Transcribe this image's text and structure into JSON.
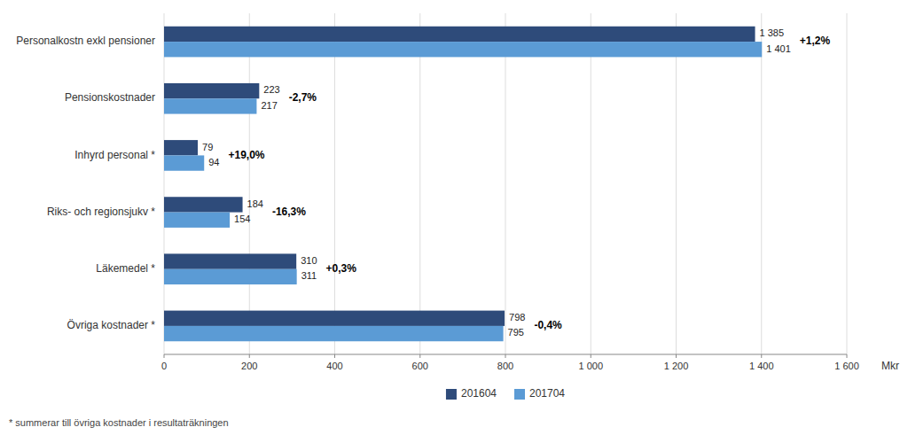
{
  "chart_data": {
    "type": "bar",
    "orientation": "horizontal",
    "categories": [
      "Personalkostn exkl pensioner",
      "Pensionskostnader",
      "Inhyrd personal *",
      "Riks- och regionsjukv *",
      "Läkemedel *",
      "Övriga kostnader *"
    ],
    "series": [
      {
        "name": "201604",
        "color": "#2E4B7A",
        "values": [
          1385,
          223,
          79,
          184,
          310,
          798
        ],
        "value_labels": [
          "1 385",
          "223",
          "79",
          "184",
          "310",
          "798"
        ]
      },
      {
        "name": "201704",
        "color": "#5B9BD5",
        "values": [
          1401,
          217,
          94,
          154,
          311,
          795
        ],
        "value_labels": [
          "1 401",
          "217",
          "94",
          "154",
          "311",
          "795"
        ]
      }
    ],
    "annotations": [
      "+1,2%",
      "-2,7%",
      "+19,0%",
      "-16,3%",
      "+0,3%",
      "-0,4%"
    ],
    "xlabel": "Mkr",
    "footnote": "* summerar till övriga kostnader i resultaträkningen",
    "xlim": [
      0,
      1600
    ],
    "xticks": [
      0,
      200,
      400,
      600,
      800,
      {
        "value": 1000,
        "label": "1 000"
      },
      {
        "value": 1200,
        "label": "1 200"
      },
      {
        "value": 1400,
        "label": "1 400"
      },
      {
        "value": 1600,
        "label": "1 600"
      }
    ],
    "grid": true,
    "legend": "bottom",
    "data_labels": true
  }
}
